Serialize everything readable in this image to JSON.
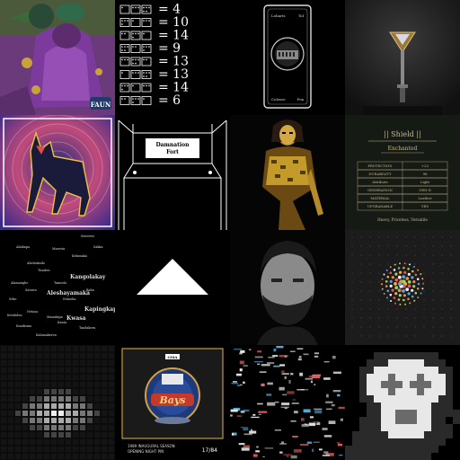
{
  "tiles": {
    "t1": {
      "watermark": "FAUN"
    },
    "t2": {
      "equations": [
        "= 4",
        "= 10",
        "= 14",
        "= 9",
        "= 13",
        "= 13",
        "= 14",
        "= 6"
      ]
    },
    "t3": {
      "card_top_left": "Lobarts",
      "card_top_right": "Tol",
      "card_bottom_left": "Colosse",
      "card_bottom_right": "Pox"
    },
    "t6": {
      "title_line1": "Damnation",
      "title_line2": "Fort"
    },
    "t8": {
      "title": "|| Shield ||",
      "subtitle": "Enchanted",
      "rows": [
        [
          "PROTECTION",
          "+22"
        ],
        [
          "DURABILITY",
          "96"
        ],
        [
          "Attribute",
          "Light"
        ],
        [
          "GENERATION",
          "GEN-II"
        ],
        [
          "MATERIAL",
          "Leather"
        ],
        [
          "UPGRADABLE",
          "YES"
        ]
      ],
      "footer": "Heavy, Priceless, Versatile"
    },
    "t9": {
      "words": [
        "Abelsakudo",
        "Sisterwe",
        "Ababapa",
        "Maresta",
        "Kelamaka",
        "Alamanghe",
        "Tamesla",
        "Kangolakay",
        "Aleshayamaka",
        "Seko",
        "Netasa",
        "Maisakipa",
        "Kwasa",
        "Kapingkapa",
        "Kanta",
        "Tumbes",
        "Kundisma",
        "Babu",
        "Nemoha",
        "Ketuhdeu",
        "Sakka",
        "Satawa",
        "Tandakeru",
        "Kalamakeren"
      ]
    },
    "t14": {
      "badge": "GMA",
      "script_text": "Bays",
      "caption_line1": "1989 INAUGURAL SEASON",
      "caption_line2": "OPENING NIGHT PIN",
      "date": "17/84"
    }
  },
  "colors": {
    "tile1_bg": "#3d2a4a",
    "tile4_bg": "#1c1c1c",
    "tile8_bg": "#161a15",
    "tile8_text": "#c6b98a",
    "tile5_bg": "#c14d7d",
    "tile14_border": "#c49a3b"
  }
}
